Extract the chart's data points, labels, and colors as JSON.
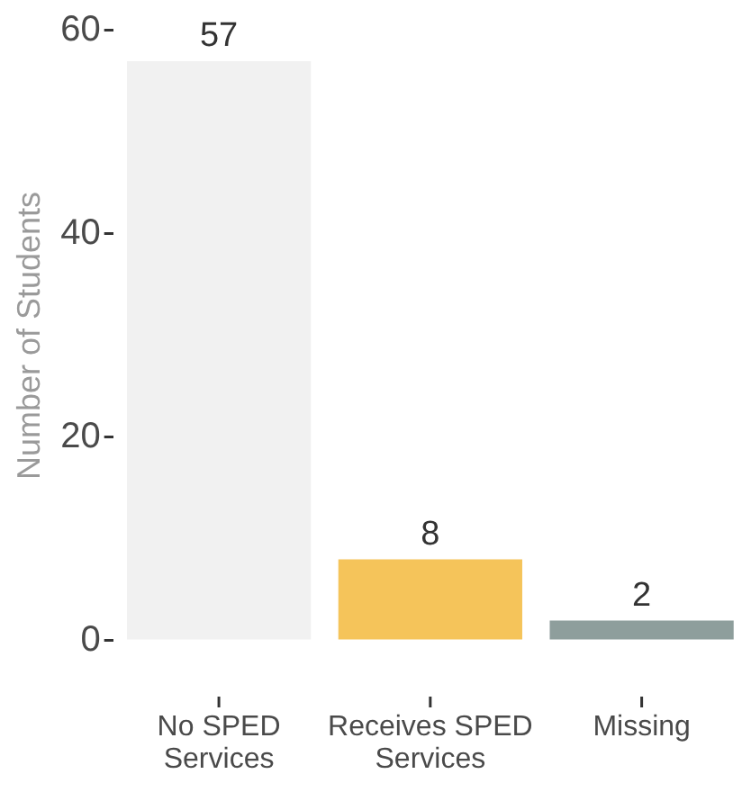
{
  "chart_data": {
    "type": "bar",
    "categories": [
      "No SPED Services",
      "Receives SPED Services",
      "Missing"
    ],
    "values": [
      57,
      8,
      2
    ],
    "colors": [
      "#f1f1f1",
      "#f5c45a",
      "#8e9e9c"
    ],
    "ylabel": "Number of Students",
    "ylim": [
      0,
      60
    ],
    "yticks": [
      0,
      20,
      40,
      60
    ],
    "data_labels": true
  }
}
